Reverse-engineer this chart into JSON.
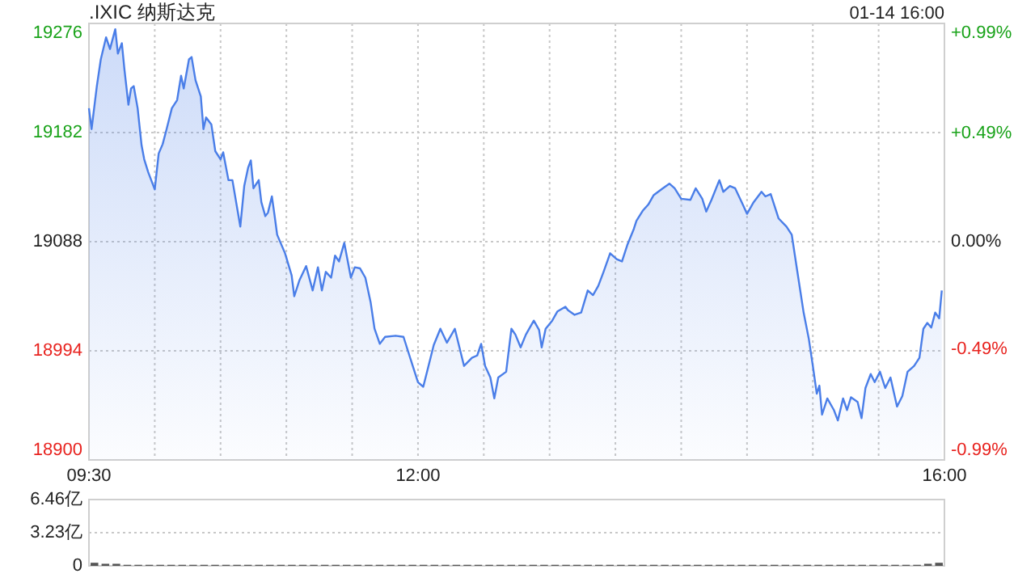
{
  "chart_data": [
    {
      "type": "area",
      "title": ".IXIC 纳斯达克",
      "annotations": [
        "01-14 16:00"
      ],
      "x": [
        9.5,
        9.52,
        9.56,
        9.59,
        9.63,
        9.66,
        9.7,
        9.72,
        9.75,
        9.77,
        9.8,
        9.82,
        9.84,
        9.87,
        9.9,
        9.92,
        9.95,
        10.0,
        10.03,
        10.06,
        10.09,
        10.13,
        10.17,
        10.2,
        10.22,
        10.26,
        10.28,
        10.31,
        10.35,
        10.37,
        10.39,
        10.43,
        10.46,
        10.5,
        10.52,
        10.56,
        10.59,
        10.65,
        10.68,
        10.71,
        10.73,
        10.75,
        10.79,
        10.81,
        10.84,
        10.86,
        10.89,
        10.91,
        10.93,
        10.99,
        11.04,
        11.06,
        11.1,
        11.15,
        11.2,
        11.24,
        11.27,
        11.3,
        11.34,
        11.37,
        11.4,
        11.44,
        11.47,
        11.49,
        11.52,
        11.56,
        11.6,
        11.64,
        11.67,
        11.71,
        11.75,
        11.83,
        11.89,
        11.96,
        12.0,
        12.04,
        12.08,
        12.12,
        12.17,
        12.22,
        12.28,
        12.35,
        12.41,
        12.45,
        12.48,
        12.51,
        12.55,
        12.58,
        12.61,
        12.67,
        12.71,
        12.74,
        12.78,
        12.82,
        12.88,
        12.92,
        12.94,
        12.97,
        13.02,
        13.06,
        13.12,
        13.14,
        13.19,
        13.24,
        13.29,
        13.33,
        13.37,
        13.41,
        13.46,
        13.51,
        13.55,
        13.59,
        13.64,
        13.66,
        13.71,
        13.75,
        13.79,
        13.86,
        13.91,
        13.95,
        14.0,
        14.07,
        14.11,
        14.16,
        14.19,
        14.23,
        14.29,
        14.32,
        14.37,
        14.41,
        14.46,
        14.5,
        14.55,
        14.61,
        14.64,
        14.68,
        14.74,
        14.8,
        14.84,
        14.88,
        14.93,
        14.97,
        15.0,
        15.03,
        15.05,
        15.07,
        15.11,
        15.16,
        15.19,
        15.23,
        15.26,
        15.29,
        15.34,
        15.37,
        15.4,
        15.44,
        15.47,
        15.51,
        15.55,
        15.59,
        15.64,
        15.68,
        15.72,
        15.77,
        15.81,
        15.84,
        15.87,
        15.9,
        15.93,
        15.96,
        15.98
      ],
      "series": [
        {
          "color": "#4a7ee8",
          "values": [
            19203,
            19185,
            19222,
            19245,
            19264,
            19254,
            19271,
            19250,
            19259,
            19236,
            19206,
            19220,
            19222,
            19203,
            19171,
            19159,
            19148,
            19133,
            19164,
            19172,
            19185,
            19203,
            19210,
            19231,
            19220,
            19245,
            19247,
            19227,
            19213,
            19185,
            19195,
            19189,
            19166,
            19159,
            19165,
            19141,
            19141,
            19101,
            19136,
            19152,
            19158,
            19134,
            19141,
            19122,
            19110,
            19113,
            19127,
            19111,
            19094,
            19078,
            19059,
            19041,
            19055,
            19067,
            19046,
            19066,
            19046,
            19062,
            19057,
            19076,
            19071,
            19087,
            19069,
            19057,
            19066,
            19065,
            19057,
            19036,
            19013,
            19000,
            19006,
            19007,
            19006,
            18981,
            18967,
            18963,
            18981,
            18999,
            19013,
            19001,
            19013,
            18981,
            18988,
            18990,
            19000,
            18981,
            18971,
            18953,
            18971,
            18976,
            19013,
            19008,
            18997,
            19008,
            19020,
            19012,
            18997,
            19013,
            19020,
            19028,
            19032,
            19029,
            19025,
            19027,
            19046,
            19042,
            19050,
            19062,
            19078,
            19073,
            19071,
            19085,
            19099,
            19106,
            19115,
            19120,
            19128,
            19134,
            19138,
            19134,
            19125,
            19124,
            19134,
            19125,
            19114,
            19124,
            19141,
            19131,
            19136,
            19134,
            19122,
            19112,
            19122,
            19131,
            19127,
            19129,
            19108,
            19101,
            19094,
            19064,
            19027,
            19004,
            18981,
            18957,
            18964,
            18939,
            18953,
            18943,
            18934,
            18953,
            18943,
            18954,
            18950,
            18936,
            18962,
            18974,
            18967,
            18976,
            18962,
            18971,
            18946,
            18955,
            18976,
            18981,
            18988,
            19013,
            19018,
            19014,
            19027,
            19022,
            19046
          ]
        }
      ],
      "xlim": [
        9.5,
        16
      ],
      "xticks": [
        {
          "value": 9.5,
          "label": "09:30"
        },
        {
          "value": 10,
          "label": null
        },
        {
          "value": 10.5,
          "label": null
        },
        {
          "value": 11,
          "label": null
        },
        {
          "value": 11.5,
          "label": null
        },
        {
          "value": 12,
          "label": "12:00"
        },
        {
          "value": 12.5,
          "label": null
        },
        {
          "value": 13,
          "label": null
        },
        {
          "value": 13.5,
          "label": null
        },
        {
          "value": 14,
          "label": null
        },
        {
          "value": 14.5,
          "label": null
        },
        {
          "value": 15,
          "label": null
        },
        {
          "value": 15.5,
          "label": null
        },
        {
          "value": 16,
          "label": "16:00"
        }
      ],
      "ylim": [
        18900,
        19276
      ],
      "yticks": [
        18900,
        18994,
        19088,
        19182,
        19276
      ],
      "y2lim": [
        -0.99,
        0.99
      ],
      "y2ticks": [
        {
          "value": -0.99,
          "label": "-0.99%"
        },
        {
          "value": -0.49,
          "label": "-0.49%"
        },
        {
          "value": 0,
          "label": "0.00%"
        },
        {
          "value": 0.49,
          "label": "+0.49%"
        },
        {
          "value": 0.99,
          "label": "+0.99%"
        }
      ],
      "grid": true
    },
    {
      "type": "bar",
      "categories": [
        null,
        null,
        null,
        null,
        null,
        null,
        null,
        null,
        null,
        null,
        null,
        null,
        null,
        null,
        null,
        null,
        null,
        null,
        null,
        null,
        null,
        null,
        null,
        null,
        null,
        null,
        null,
        null,
        null,
        null,
        null,
        null,
        null,
        null,
        null,
        null,
        null,
        null,
        null,
        null,
        null,
        null,
        null,
        null,
        null,
        null,
        null,
        null,
        null,
        null,
        null,
        null,
        null,
        null,
        null,
        null,
        null,
        null,
        null,
        null,
        null,
        null,
        null,
        null,
        null,
        null,
        null,
        null,
        null,
        null,
        null,
        null,
        null,
        null,
        null,
        null,
        null,
        null
      ],
      "values": [
        0.3,
        0.2,
        0.2,
        0.1,
        0.1,
        0.1,
        0.1,
        0.1,
        0.1,
        0.1,
        0.1,
        0.1,
        0.1,
        0.1,
        0.1,
        0.1,
        0.1,
        0.1,
        0.1,
        0.1,
        0.1,
        0.1,
        0.1,
        0.1,
        0.1,
        0.1,
        0.1,
        0.1,
        0.1,
        0.1,
        0.1,
        0.1,
        0.1,
        0.1,
        0.1,
        0.1,
        0.1,
        0.1,
        0.1,
        0.1,
        0.1,
        0.1,
        0.1,
        0.1,
        0.1,
        0.1,
        0.1,
        0.1,
        0.1,
        0.1,
        0.1,
        0.1,
        0.1,
        0.1,
        0.1,
        0.1,
        0.1,
        0.1,
        0.1,
        0.1,
        0.1,
        0.1,
        0.1,
        0.1,
        0.1,
        0.1,
        0.1,
        0.1,
        0.1,
        0.1,
        0.1,
        0.1,
        0.1,
        0.1,
        0.1,
        0.1,
        0.2,
        0.3
      ],
      "color": "#555555",
      "ylim": [
        0,
        6.46
      ],
      "yticks": [
        0,
        {
          "value": 3.23,
          "label": "3.23亿"
        },
        {
          "value": 6.46,
          "label": "6.46亿"
        }
      ],
      "grid": "y",
      "tick_labels": "y"
    }
  ]
}
